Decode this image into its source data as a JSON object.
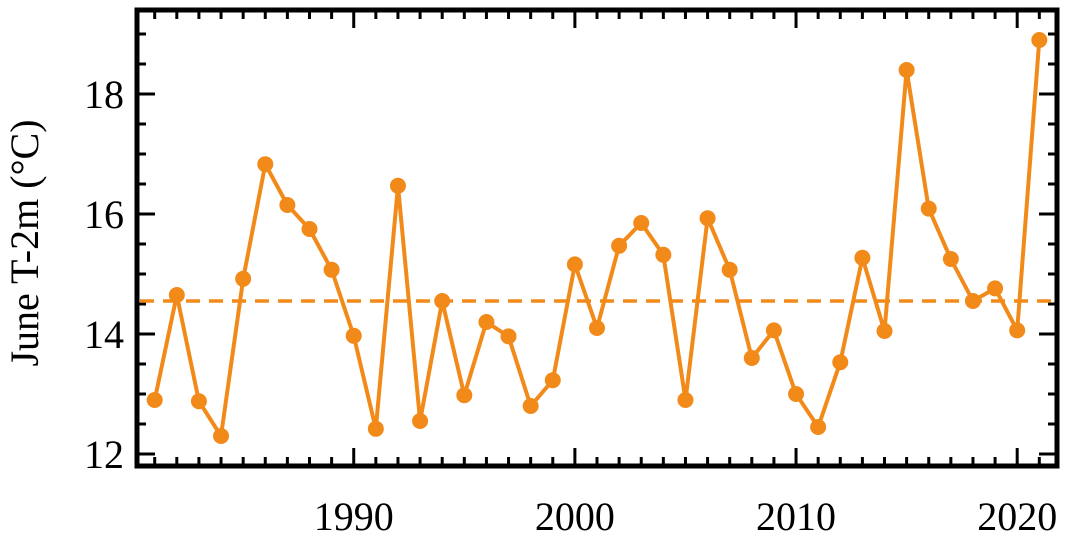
{
  "chart_data": {
    "type": "line",
    "xlabel": "",
    "ylabel": "June T-2m (°C)",
    "xlim": [
      1980.2,
      2021.8
    ],
    "ylim": [
      11.8,
      19.4
    ],
    "x_ticks": [
      1990,
      2000,
      2010,
      2020
    ],
    "y_ticks": [
      12,
      14,
      16,
      18
    ],
    "grid": false,
    "reference_line": {
      "y": 14.55,
      "style": "dashed"
    },
    "series": [
      {
        "color": "#f28a1a",
        "x": [
          1981,
          1982,
          1983,
          1984,
          1985,
          1986,
          1987,
          1988,
          1989,
          1990,
          1991,
          1992,
          1993,
          1994,
          1995,
          1996,
          1997,
          1998,
          1999,
          2000,
          2001,
          2002,
          2003,
          2004,
          2005,
          2006,
          2007,
          2008,
          2009,
          2010,
          2011,
          2012,
          2013,
          2014,
          2015,
          2016,
          2017,
          2018,
          2019,
          2020,
          2021
        ],
        "y": [
          12.9,
          14.65,
          12.88,
          12.3,
          14.92,
          16.83,
          16.15,
          15.75,
          15.07,
          13.97,
          12.42,
          16.47,
          12.55,
          14.55,
          12.98,
          14.2,
          13.96,
          12.8,
          13.23,
          15.16,
          14.1,
          15.47,
          15.85,
          15.32,
          12.9,
          15.93,
          15.07,
          13.6,
          14.06,
          13.0,
          12.45,
          13.53,
          15.27,
          14.05,
          18.4,
          16.09,
          15.25,
          14.55,
          14.76,
          14.06,
          18.9
        ]
      }
    ]
  }
}
